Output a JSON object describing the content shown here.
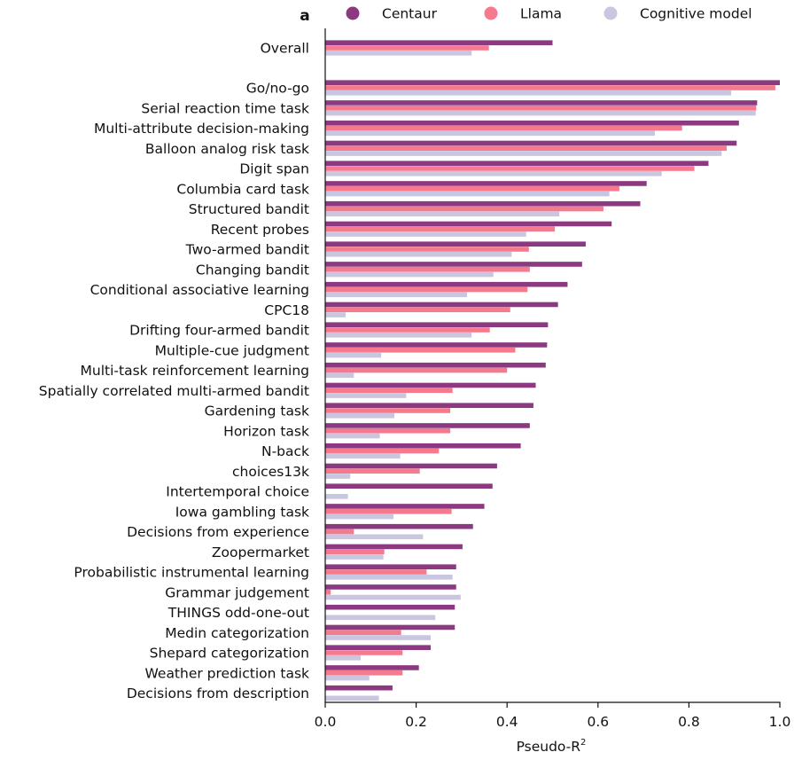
{
  "panel_label": "a",
  "chart_data": {
    "type": "bar",
    "orientation": "horizontal",
    "title": "",
    "xlabel": "Pseudo-R",
    "xlabel_superscript": "2",
    "ylabel": "",
    "xlim": [
      0.0,
      1.0
    ],
    "xticks": [
      0.0,
      0.2,
      0.4,
      0.6,
      0.8,
      1.0
    ],
    "xtick_labels": [
      "0.0",
      "0.2",
      "0.4",
      "0.6",
      "0.8",
      "1.0"
    ],
    "grid": false,
    "legend_position": "top",
    "categories": [
      "Overall",
      "Go/no-go",
      "Serial reaction time task",
      "Multi-attribute decision-making",
      "Balloon analog risk task",
      "Digit span",
      "Columbia card task",
      "Structured bandit",
      "Recent probes",
      "Two-armed bandit",
      "Changing bandit",
      "Conditional associative learning",
      "CPC18",
      "Drifting four-armed bandit",
      "Multiple-cue judgment",
      "Multi-task reinforcement learning",
      "Spatially correlated multi-armed bandit",
      "Gardening task",
      "Horizon task",
      "N-back",
      "choices13k",
      "Intertemporal choice",
      "Iowa gambling task",
      "Decisions from experience",
      "Zoopermarket",
      "Probabilistic instrumental learning",
      "Grammar judgement",
      "THINGS odd-one-out",
      "Medin categorization",
      "Shepard categorization",
      "Weather prediction task",
      "Decisions from description"
    ],
    "series": [
      {
        "name": "Centaur",
        "color": "#8b3a82",
        "values": [
          0.5,
          1.0,
          0.95,
          0.91,
          0.905,
          0.843,
          0.707,
          0.693,
          0.63,
          0.573,
          0.565,
          0.533,
          0.512,
          0.49,
          0.488,
          0.485,
          0.463,
          0.458,
          0.45,
          0.43,
          0.378,
          0.368,
          0.35,
          0.325,
          0.302,
          0.288,
          0.288,
          0.285,
          0.285,
          0.232,
          0.206,
          0.148
        ]
      },
      {
        "name": "Llama",
        "color": "#f67a8e",
        "values": [
          0.36,
          0.99,
          0.948,
          0.785,
          0.883,
          0.812,
          0.647,
          0.612,
          0.505,
          0.448,
          0.45,
          0.445,
          0.407,
          0.362,
          0.418,
          0.4,
          0.28,
          0.275,
          0.275,
          0.25,
          0.208,
          0.0,
          0.278,
          0.063,
          0.13,
          0.223,
          0.012,
          0.0,
          0.167,
          0.17,
          0.17,
          0.0
        ]
      },
      {
        "name": "Cognitive model",
        "color": "#c9c6e0",
        "values": [
          0.322,
          0.893,
          0.947,
          0.725,
          0.872,
          0.74,
          0.625,
          0.515,
          0.442,
          0.41,
          0.37,
          0.312,
          0.045,
          0.322,
          0.123,
          0.063,
          0.178,
          0.152,
          0.12,
          0.165,
          0.055,
          0.05,
          0.15,
          0.215,
          0.128,
          0.28,
          0.298,
          0.242,
          0.232,
          0.078,
          0.097,
          0.118
        ]
      }
    ]
  }
}
